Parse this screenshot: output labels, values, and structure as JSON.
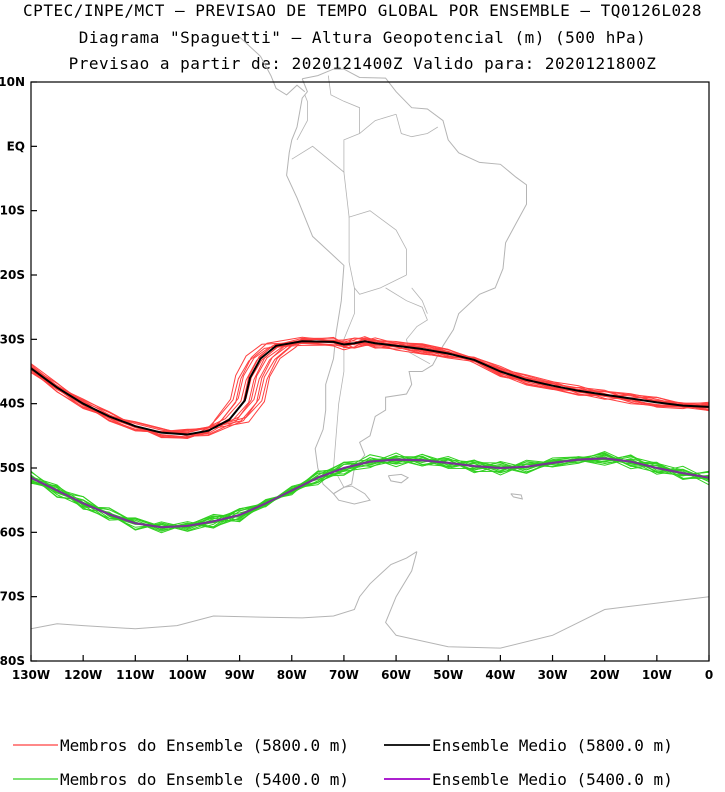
{
  "header": {
    "line1": "CPTEC/INPE/MCT – PREVISAO DE TEMPO GLOBAL POR ENSEMBLE – TQ0126L028",
    "line2": "Diagrama \"Spaguetti\" – Altura Geopotencial (m) (500 hPa)",
    "line3": "Previsao a partir de: 2020121400Z  Valido para: 2020121800Z"
  },
  "chart_data": {
    "type": "line",
    "title": "Diagrama \"Spaguetti\" – Altura Geopotencial (m) (500 hPa)",
    "xlabel": "",
    "ylabel": "",
    "xlim": [
      -130,
      0
    ],
    "ylim": [
      -80,
      10
    ],
    "x_ticks": [
      -130,
      -120,
      -110,
      -100,
      -90,
      -80,
      -70,
      -60,
      -50,
      -40,
      -30,
      -20,
      -10,
      0
    ],
    "x_tick_labels": [
      "130W",
      "120W",
      "110W",
      "100W",
      "90W",
      "80W",
      "70W",
      "60W",
      "50W",
      "40W",
      "30W",
      "20W",
      "10W",
      "0"
    ],
    "y_ticks": [
      10,
      0,
      -10,
      -20,
      -30,
      -40,
      -50,
      -60,
      -70,
      -80
    ],
    "y_tick_labels": [
      "10N",
      "EQ",
      "10S",
      "20S",
      "30S",
      "40S",
      "50S",
      "60S",
      "70S",
      "80S"
    ],
    "series": [
      {
        "name": "Ensemble Medio (5800.0 m)",
        "color": "#000000",
        "points": [
          [
            -130,
            -34.5
          ],
          [
            -125,
            -37.5
          ],
          [
            -120,
            -40
          ],
          [
            -115,
            -42
          ],
          [
            -110,
            -43.5
          ],
          [
            -105,
            -44.5
          ],
          [
            -100,
            -44.8
          ],
          [
            -96,
            -44.2
          ],
          [
            -92,
            -42.5
          ],
          [
            -89,
            -39.5
          ],
          [
            -88,
            -36
          ],
          [
            -86,
            -33
          ],
          [
            -83,
            -31
          ],
          [
            -78,
            -30.3
          ],
          [
            -72,
            -30.4
          ],
          [
            -70,
            -30.8
          ],
          [
            -68,
            -30.6
          ],
          [
            -66,
            -30.3
          ],
          [
            -64,
            -30.6
          ],
          [
            -60,
            -31
          ],
          [
            -55,
            -31.5
          ],
          [
            -50,
            -32.2
          ],
          [
            -45,
            -33.2
          ],
          [
            -40,
            -35
          ],
          [
            -35,
            -36.3
          ],
          [
            -30,
            -37.2
          ],
          [
            -25,
            -38
          ],
          [
            -20,
            -38.6
          ],
          [
            -15,
            -39.2
          ],
          [
            -10,
            -39.8
          ],
          [
            -5,
            -40.3
          ],
          [
            0,
            -40.5
          ]
        ]
      },
      {
        "name": "Ensemble Medio (5400.0 m)",
        "color": "#a000c8",
        "points": [
          [
            -130,
            -51.5
          ],
          [
            -125,
            -53.5
          ],
          [
            -120,
            -55.5
          ],
          [
            -115,
            -57.2
          ],
          [
            -110,
            -58.6
          ],
          [
            -105,
            -59.2
          ],
          [
            -100,
            -59
          ],
          [
            -95,
            -58.3
          ],
          [
            -90,
            -57.3
          ],
          [
            -85,
            -55.5
          ],
          [
            -80,
            -53.5
          ],
          [
            -75,
            -51.5
          ],
          [
            -70,
            -50
          ],
          [
            -65,
            -49
          ],
          [
            -60,
            -48.7
          ],
          [
            -55,
            -48.8
          ],
          [
            -50,
            -49.2
          ],
          [
            -45,
            -49.7
          ],
          [
            -40,
            -50
          ],
          [
            -35,
            -49.8
          ],
          [
            -30,
            -49.2
          ],
          [
            -25,
            -48.7
          ],
          [
            -20,
            -48.5
          ],
          [
            -15,
            -49
          ],
          [
            -10,
            -50
          ],
          [
            -5,
            -50.8
          ],
          [
            0,
            -51.5
          ]
        ]
      }
    ],
    "ensemble_members": [
      {
        "name": "Membros do Ensemble (5800.0 m)",
        "color": "#ff4040",
        "count": 14
      },
      {
        "name": "Membros do Ensemble (5400.0 m)",
        "color": "#30d020",
        "count": 14
      }
    ],
    "basemap": "continents and country borders (South America, Antarctica)",
    "grid": false
  },
  "legend": {
    "items": [
      {
        "label": "Membros do Ensemble (5800.0 m)",
        "color": "#ff4040"
      },
      {
        "label": "Ensemble Medio (5800.0 m)",
        "color": "#000000"
      },
      {
        "label": "Membros do Ensemble (5400.0 m)",
        "color": "#30d020"
      },
      {
        "label": "Ensemble Medio (5400.0 m)",
        "color": "#a000c8"
      }
    ]
  },
  "colors": {
    "map_lines": "#b4b4b4",
    "frame": "#000000"
  }
}
